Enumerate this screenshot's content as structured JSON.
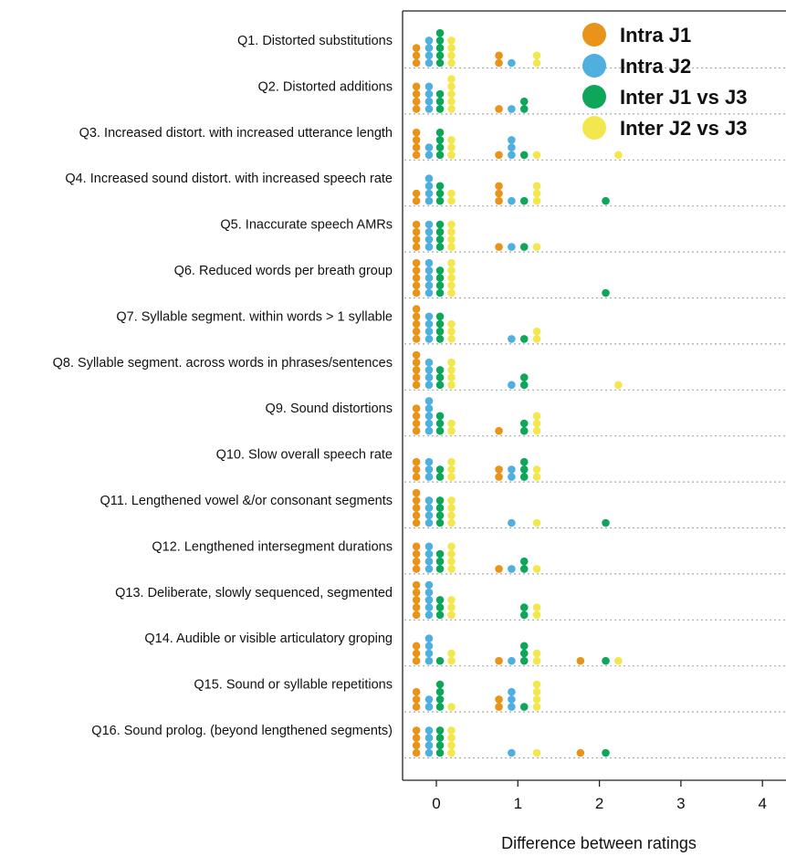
{
  "chart_data": {
    "type": "scatter",
    "subtype": "dot-plot",
    "xlabel": "Difference between ratings",
    "x_ticks": [
      "0",
      "1",
      "2",
      "3",
      "4"
    ],
    "xlim": [
      -0.4,
      4.1
    ],
    "legend_position": "top-right",
    "series": [
      {
        "name": "Intra J1",
        "color": "#E8941A"
      },
      {
        "name": "Intra J2",
        "color": "#4FB0E0"
      },
      {
        "name": "Inter J1 vs J3",
        "color": "#0DA65A"
      },
      {
        "name": "Inter J2 vs J3",
        "color": "#F2E84E"
      }
    ],
    "questions": [
      {
        "label": "Q1.  Distorted substitutions",
        "counts": [
          [
            0,
            3
          ],
          [
            0,
            4
          ],
          [
            0,
            5
          ],
          [
            0,
            4
          ],
          [
            1,
            2
          ],
          [
            1,
            1
          ],
          [
            1,
            0
          ],
          [
            1,
            2
          ]
        ]
      },
      {
        "label": "Q2.  Distorted additions",
        "counts": [
          [
            0,
            4
          ],
          [
            0,
            4
          ],
          [
            0,
            3
          ],
          [
            0,
            5
          ],
          [
            1,
            1
          ],
          [
            1,
            1
          ],
          [
            1,
            2
          ],
          [
            1,
            0
          ]
        ]
      },
      {
        "label": "Q3.  Increased distort. with increased utterance length",
        "counts": [
          [
            0,
            4
          ],
          [
            0,
            2
          ],
          [
            0,
            4
          ],
          [
            0,
            3
          ],
          [
            1,
            1
          ],
          [
            1,
            3
          ],
          [
            1,
            1
          ],
          [
            1,
            1
          ],
          [
            2,
            0
          ],
          [
            2,
            0
          ],
          [
            2,
            0
          ],
          [
            2,
            1
          ]
        ]
      },
      {
        "label": "Q4.  Increased sound distort. with increased speech rate",
        "counts": [
          [
            0,
            2
          ],
          [
            0,
            4
          ],
          [
            0,
            3
          ],
          [
            0,
            2
          ],
          [
            1,
            3
          ],
          [
            1,
            1
          ],
          [
            1,
            1
          ],
          [
            1,
            3
          ],
          [
            2,
            0
          ],
          [
            2,
            0
          ],
          [
            2,
            1
          ],
          [
            2,
            0
          ]
        ]
      },
      {
        "label": "Q5.  Inaccurate speech AMRs",
        "counts": [
          [
            0,
            4
          ],
          [
            0,
            4
          ],
          [
            0,
            4
          ],
          [
            0,
            4
          ],
          [
            1,
            1
          ],
          [
            1,
            1
          ],
          [
            1,
            1
          ],
          [
            1,
            1
          ]
        ]
      },
      {
        "label": "Q6.  Reduced words per breath group",
        "counts": [
          [
            0,
            5
          ],
          [
            0,
            5
          ],
          [
            0,
            4
          ],
          [
            0,
            5
          ],
          [
            1,
            0
          ],
          [
            1,
            0
          ],
          [
            1,
            0
          ],
          [
            1,
            0
          ],
          [
            2,
            0
          ],
          [
            2,
            0
          ],
          [
            2,
            1
          ],
          [
            2,
            0
          ]
        ]
      },
      {
        "label": "Q7.  Syllable segment. within words > 1 syllable",
        "counts": [
          [
            0,
            5
          ],
          [
            0,
            4
          ],
          [
            0,
            4
          ],
          [
            0,
            3
          ],
          [
            1,
            0
          ],
          [
            1,
            1
          ],
          [
            1,
            1
          ],
          [
            1,
            2
          ]
        ]
      },
      {
        "label": "Q8.  Syllable segment. across words in phrases/sentences",
        "counts": [
          [
            0,
            5
          ],
          [
            0,
            4
          ],
          [
            0,
            3
          ],
          [
            0,
            4
          ],
          [
            1,
            0
          ],
          [
            1,
            1
          ],
          [
            1,
            2
          ],
          [
            1,
            0
          ],
          [
            2,
            0
          ],
          [
            2,
            0
          ],
          [
            2,
            0
          ],
          [
            2,
            1
          ]
        ]
      },
      {
        "label": "Q9.  Sound distortions",
        "counts": [
          [
            0,
            4
          ],
          [
            0,
            5
          ],
          [
            0,
            3
          ],
          [
            0,
            2
          ],
          [
            1,
            1
          ],
          [
            1,
            0
          ],
          [
            1,
            2
          ],
          [
            1,
            3
          ]
        ]
      },
      {
        "label": "Q10.  Slow overall speech rate",
        "counts": [
          [
            0,
            3
          ],
          [
            0,
            3
          ],
          [
            0,
            2
          ],
          [
            0,
            3
          ],
          [
            1,
            2
          ],
          [
            1,
            2
          ],
          [
            1,
            3
          ],
          [
            1,
            2
          ]
        ]
      },
      {
        "label": "Q11.  Lengthened vowel &/or consonant segments",
        "counts": [
          [
            0,
            5
          ],
          [
            0,
            4
          ],
          [
            0,
            4
          ],
          [
            0,
            4
          ],
          [
            1,
            0
          ],
          [
            1,
            1
          ],
          [
            1,
            0
          ],
          [
            1,
            1
          ],
          [
            2,
            0
          ],
          [
            2,
            0
          ],
          [
            2,
            1
          ],
          [
            2,
            0
          ]
        ]
      },
      {
        "label": "Q12.  Lengthened intersegment durations",
        "counts": [
          [
            0,
            4
          ],
          [
            0,
            4
          ],
          [
            0,
            3
          ],
          [
            0,
            4
          ],
          [
            1,
            1
          ],
          [
            1,
            1
          ],
          [
            1,
            2
          ],
          [
            1,
            1
          ]
        ]
      },
      {
        "label": "Q13.  Deliberate, slowly sequenced, segmented",
        "counts": [
          [
            0,
            5
          ],
          [
            0,
            5
          ],
          [
            0,
            3
          ],
          [
            0,
            3
          ],
          [
            1,
            0
          ],
          [
            1,
            0
          ],
          [
            1,
            2
          ],
          [
            1,
            2
          ]
        ]
      },
      {
        "label": "Q14.  Audible or visible articulatory groping",
        "counts": [
          [
            0,
            3
          ],
          [
            0,
            4
          ],
          [
            0,
            1
          ],
          [
            0,
            2
          ],
          [
            1,
            1
          ],
          [
            1,
            1
          ],
          [
            1,
            3
          ],
          [
            1,
            2
          ],
          [
            2,
            1
          ],
          [
            2,
            0
          ],
          [
            2,
            1
          ],
          [
            2,
            1
          ]
        ]
      },
      {
        "label": "Q15.  Sound or syllable repetitions",
        "counts": [
          [
            0,
            3
          ],
          [
            0,
            2
          ],
          [
            0,
            4
          ],
          [
            0,
            1
          ],
          [
            1,
            2
          ],
          [
            1,
            3
          ],
          [
            1,
            1
          ],
          [
            1,
            4
          ]
        ]
      },
      {
        "label": "Q16.  Sound prolog. (beyond lengthened segments)",
        "counts": [
          [
            0,
            4
          ],
          [
            0,
            4
          ],
          [
            0,
            4
          ],
          [
            0,
            4
          ],
          [
            1,
            0
          ],
          [
            1,
            1
          ],
          [
            1,
            0
          ],
          [
            1,
            1
          ],
          [
            2,
            1
          ],
          [
            2,
            0
          ],
          [
            2,
            1
          ],
          [
            2,
            0
          ]
        ]
      }
    ]
  }
}
